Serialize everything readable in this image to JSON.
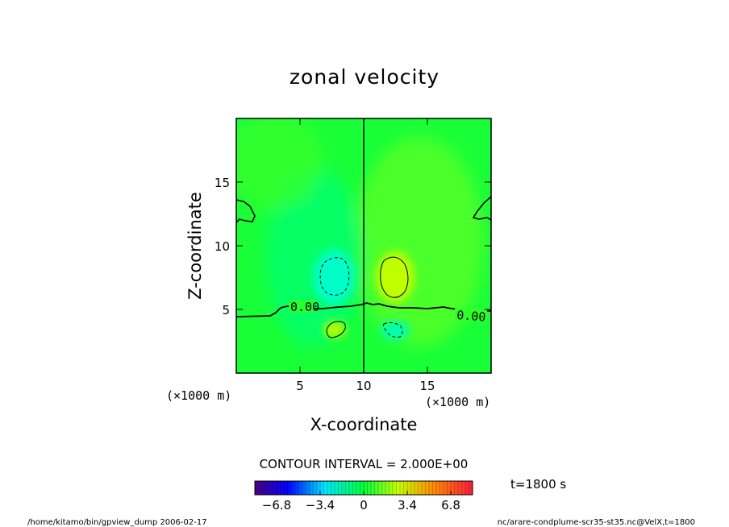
{
  "chart_data": {
    "type": "heatmap",
    "title": "zonal velocity",
    "xlabel": "X-coordinate",
    "ylabel": "Z-coordinate",
    "x_unit": "(×1000 m)",
    "y_unit": "(×1000 m)",
    "xlim": [
      0,
      20
    ],
    "ylim": [
      0,
      20
    ],
    "x_ticks": [
      "5",
      "10",
      "15"
    ],
    "y_ticks": [
      "5",
      "10",
      "15"
    ],
    "contour_interval_text": "CONTOUR INTERVAL = 2.000E+00",
    "contour_labels": [
      "0.00",
      "0.00"
    ],
    "colorbar": {
      "range": [
        -8.5,
        8.5
      ],
      "tick_labels": [
        "−6.8",
        "−3.4",
        "0",
        "3.4",
        "6.8"
      ],
      "tick_values": [
        -6.8,
        -3.4,
        0,
        3.4,
        6.8
      ]
    },
    "time_label": "t=1800 s",
    "features": [
      {
        "kind": "negative-cell",
        "x": 8.5,
        "z": 7.5,
        "value": -2.5
      },
      {
        "kind": "positive-cell",
        "x": 12.5,
        "z": 7.5,
        "value": 2.6
      },
      {
        "kind": "positive-cell",
        "x": 7.8,
        "z": 3.5,
        "value": 2.2
      },
      {
        "kind": "negative-cell",
        "x": 12.5,
        "z": 3.4,
        "value": -2.2
      }
    ]
  },
  "footer": {
    "left": "/home/kitamo/bin/gpview_dump  2006-02-17",
    "right": "nc/arare-condplume-scr35-st35.nc@VelX,t=1800"
  }
}
